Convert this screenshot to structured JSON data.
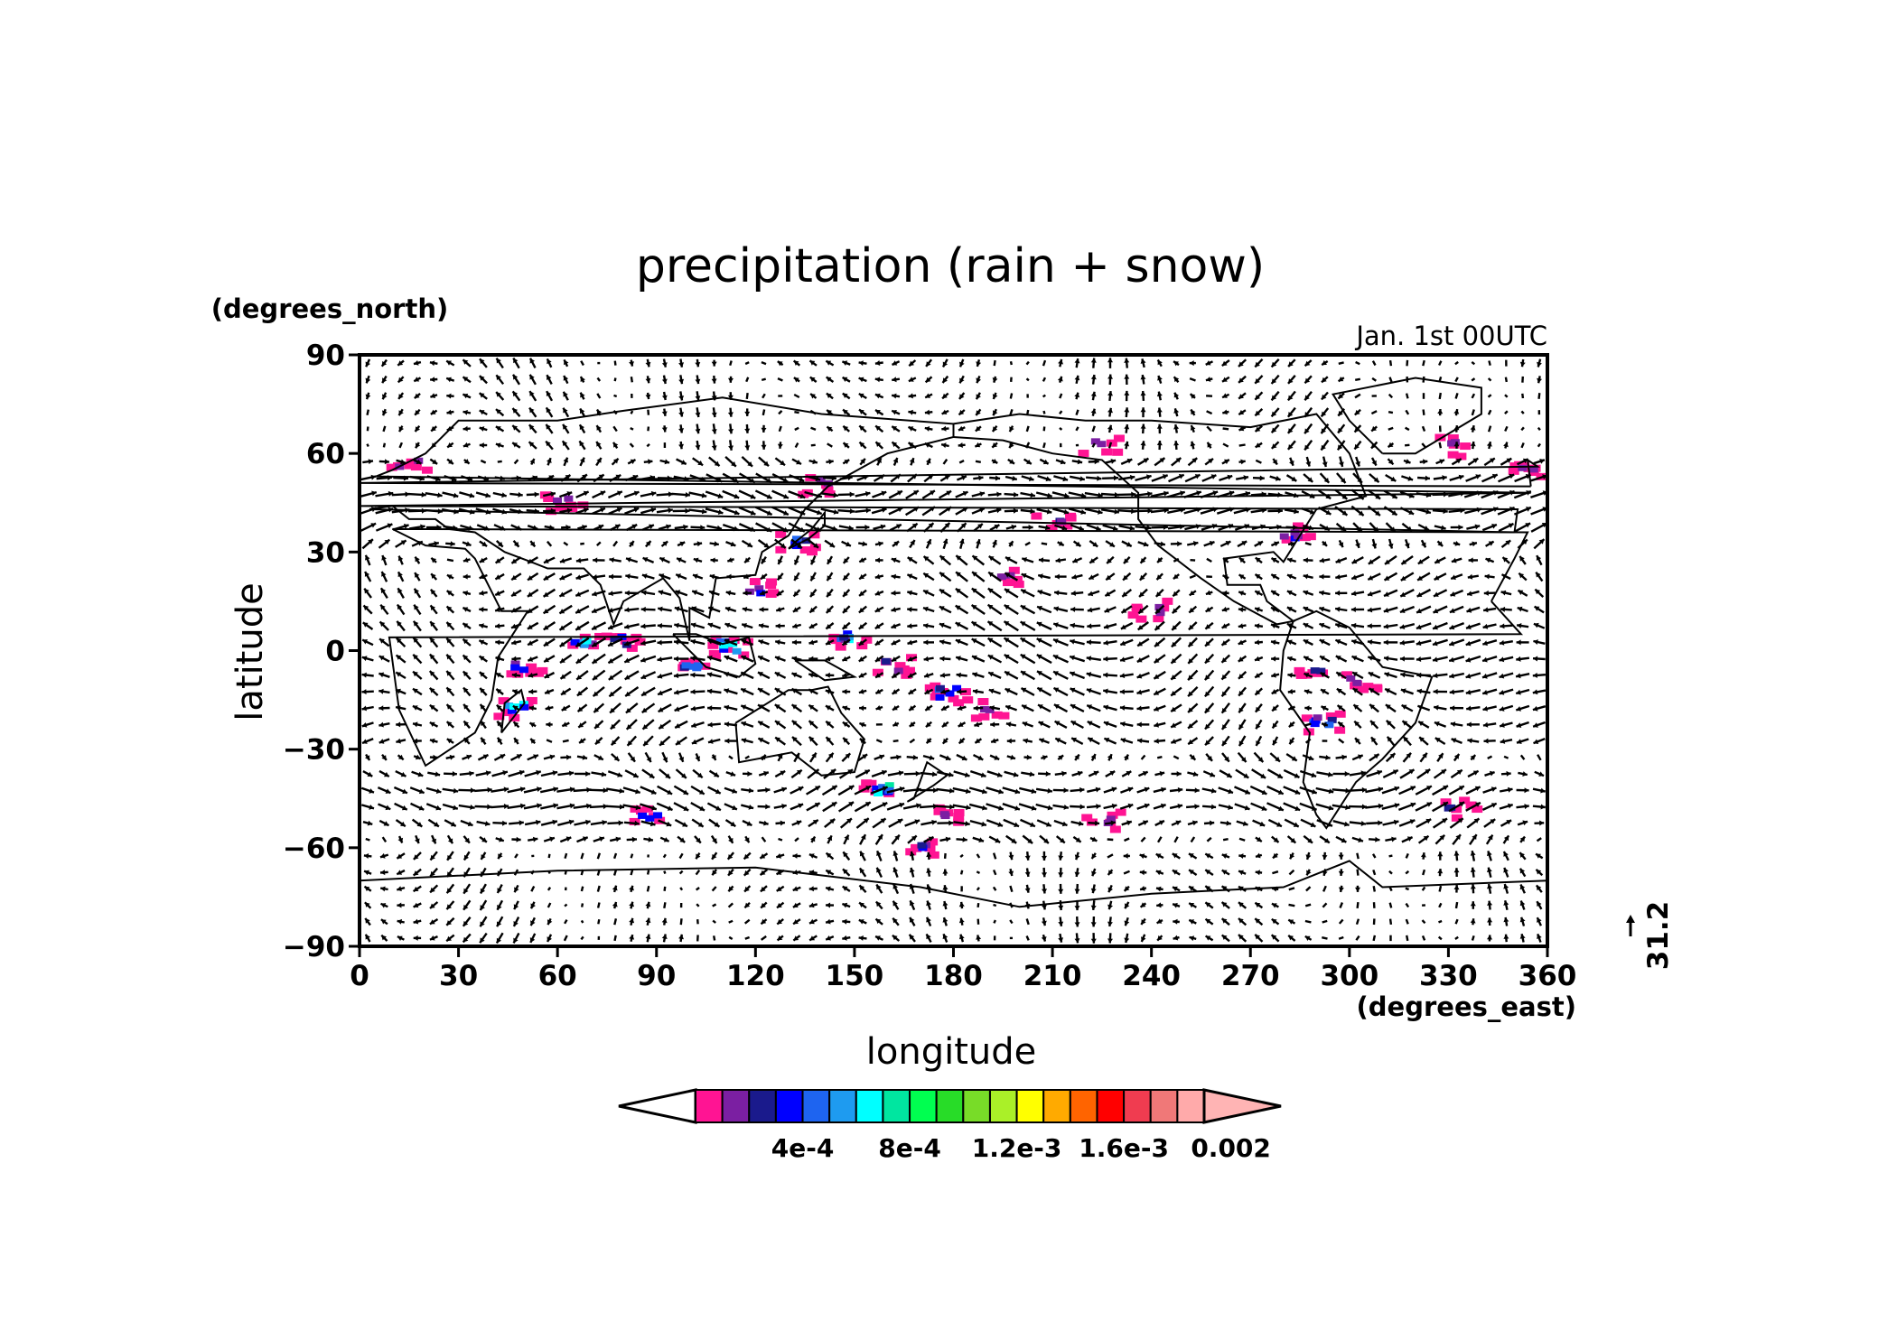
{
  "chart": {
    "title": "precipitation (rain + snow)",
    "time_label": "Jan. 1st 00UTC",
    "xlabel": "longitude",
    "ylabel": "latitude",
    "x_units": "(degrees_east)",
    "y_units": "(degrees_north)",
    "vector_ref": "31.2"
  },
  "chart_data": {
    "type": "heatmap",
    "projection": "lat-lon",
    "x_range": [
      0,
      360
    ],
    "y_range": [
      -90,
      90
    ],
    "x_ticks": [
      0,
      30,
      60,
      90,
      120,
      150,
      180,
      210,
      240,
      270,
      300,
      330,
      360
    ],
    "y_ticks": [
      90,
      60,
      30,
      0,
      -30,
      -60,
      -90
    ],
    "x_tick_labels": [
      "0",
      "30",
      "60",
      "90",
      "120",
      "150",
      "180",
      "210",
      "240",
      "270",
      "300",
      "330",
      "360"
    ],
    "y_tick_labels": [
      "90",
      "60",
      "30",
      "0",
      "−30",
      "−60",
      "−90"
    ],
    "colorbar": {
      "colors": [
        "#ff1493",
        "#7b1fa2",
        "#1a1a8c",
        "#0000ff",
        "#1e64f0",
        "#1e9bf0",
        "#00ffff",
        "#00e6a0",
        "#00ff50",
        "#28dc28",
        "#78dc28",
        "#aaf028",
        "#ffff00",
        "#ffaa00",
        "#ff6400",
        "#ff0000",
        "#f03c50",
        "#f07878",
        "#ffaaaa"
      ],
      "under_color": "#ffffff",
      "over_color": "#ffb4b4",
      "tick_values": [
        0.0004,
        0.0008,
        0.0012,
        0.0016,
        0.002
      ],
      "tick_labels": [
        "4e-4",
        "8e-4",
        "1.2e-3",
        "1.6e-3",
        "0.002"
      ]
    },
    "precip_regions": [
      {
        "lon": 68,
        "lat": 3,
        "level": 6
      },
      {
        "lon": 80,
        "lat": 3,
        "level": 3
      },
      {
        "lon": 100,
        "lat": -5,
        "level": 5
      },
      {
        "lon": 112,
        "lat": 1,
        "level": 6
      },
      {
        "lon": 120,
        "lat": 18,
        "level": 3
      },
      {
        "lon": 133,
        "lat": 33,
        "level": 5
      },
      {
        "lon": 148,
        "lat": 4,
        "level": 6
      },
      {
        "lon": 162,
        "lat": -5,
        "level": 3
      },
      {
        "lon": 178,
        "lat": -13,
        "level": 5
      },
      {
        "lon": 190,
        "lat": -18,
        "level": 1
      },
      {
        "lon": 210,
        "lat": 40,
        "level": 2
      },
      {
        "lon": 195,
        "lat": 22,
        "level": 1
      },
      {
        "lon": 240,
        "lat": 12,
        "level": 2
      },
      {
        "lon": 283,
        "lat": 35,
        "level": 4
      },
      {
        "lon": 290,
        "lat": -5,
        "level": 2
      },
      {
        "lon": 292,
        "lat": -22,
        "level": 6
      },
      {
        "lon": 303,
        "lat": -10,
        "level": 1
      },
      {
        "lon": 48,
        "lat": -18,
        "level": 6
      },
      {
        "lon": 50,
        "lat": -5,
        "level": 3
      },
      {
        "lon": 170,
        "lat": -60,
        "level": 3
      },
      {
        "lon": 180,
        "lat": -50,
        "level": 2
      },
      {
        "lon": 88,
        "lat": -50,
        "level": 3
      },
      {
        "lon": 225,
        "lat": -52,
        "level": 1
      },
      {
        "lon": 15,
        "lat": 57,
        "level": 1
      },
      {
        "lon": 355,
        "lat": 55,
        "level": 1
      },
      {
        "lon": 330,
        "lat": 62,
        "level": 1
      },
      {
        "lon": 225,
        "lat": 62,
        "level": 1
      },
      {
        "lon": 62,
        "lat": 45,
        "level": 1
      },
      {
        "lon": 333,
        "lat": -48,
        "level": 2
      },
      {
        "lon": 140,
        "lat": 50,
        "level": 1
      },
      {
        "lon": 158,
        "lat": -42,
        "level": 7
      }
    ]
  }
}
